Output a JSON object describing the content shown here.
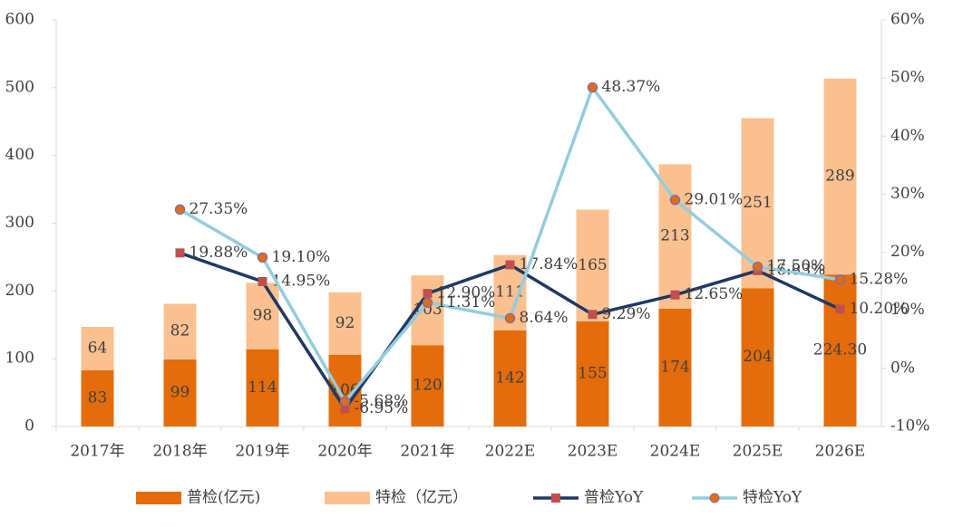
{
  "chart_data": {
    "type": "combo",
    "categories": [
      "2017年",
      "2018年",
      "2019年",
      "2020年",
      "2021年",
      "2022E",
      "2023E",
      "2024E",
      "2025E",
      "2026E"
    ],
    "series": [
      {
        "name": "普检(亿元)",
        "type": "bar",
        "color": "#E46C0A",
        "values": [
          83,
          99,
          114,
          106,
          120,
          142,
          155,
          174,
          204,
          224.3
        ],
        "value_labels": [
          "83",
          "99",
          "114",
          "106",
          "120",
          "142",
          "155",
          "174",
          "204",
          "224.30"
        ]
      },
      {
        "name": "特检（亿元）",
        "type": "bar",
        "color": "#FAC090",
        "values": [
          64,
          82,
          98,
          92,
          103,
          111,
          165,
          213,
          251,
          289
        ]
      },
      {
        "name": "普检YoY",
        "type": "line",
        "axis": "y2",
        "color": "#1F3864",
        "marker": "square",
        "marker_color": "#C0504D",
        "values": [
          null,
          19.88,
          14.95,
          -6.95,
          12.9,
          17.84,
          9.29,
          12.65,
          16.83,
          10.2
        ],
        "value_labels": [
          null,
          "19.88%",
          "14.95%",
          "-6.95%",
          "12.90%",
          "17.84%",
          "9.29%",
          "12.65%",
          "16.83%",
          "10.20%"
        ]
      },
      {
        "name": "特检YoY",
        "type": "line",
        "axis": "y2",
        "color": "#93CDDD",
        "marker": "circle",
        "marker_color": "#E46C0A",
        "values": [
          null,
          27.35,
          19.1,
          -5.68,
          11.31,
          8.64,
          48.37,
          29.01,
          17.5,
          15.28
        ],
        "value_labels": [
          null,
          "27.35%",
          "19.10%",
          "-5.68%",
          "11.31%",
          "8.64%",
          "48.37%",
          "29.01%",
          "17.50%",
          "15.28%"
        ]
      }
    ],
    "stacked": true,
    "ylim": [
      0,
      600
    ],
    "yticks": [
      0,
      100,
      200,
      300,
      400,
      500,
      600
    ],
    "y2lim": [
      -10,
      60
    ],
    "y2ticks": [
      {
        "value": -10,
        "label": "-10%"
      },
      {
        "value": 0,
        "label": "0%"
      },
      {
        "value": 10,
        "label": "10%"
      },
      {
        "value": 20,
        "label": "20%"
      },
      {
        "value": 30,
        "label": "30%"
      },
      {
        "value": 40,
        "label": "40%"
      },
      {
        "value": 50,
        "label": "50%"
      },
      {
        "value": 60,
        "label": "60%"
      }
    ],
    "legend": "bottom"
  }
}
